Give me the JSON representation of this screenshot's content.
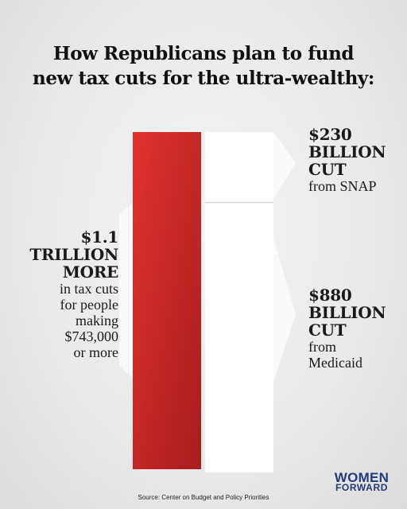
{
  "title": {
    "line1": "How Republicans plan to fund",
    "line2": "new tax cuts for the ultra-wealthy:"
  },
  "chart_data": {
    "type": "bar",
    "series": [
      {
        "name": "tax cuts",
        "values": [
          1100
        ],
        "color": "#d42a2a"
      },
      {
        "name": "SNAP",
        "values": [
          230
        ],
        "color": "#ffffff"
      },
      {
        "name": "Medicaid",
        "values": [
          880
        ],
        "color": "#ffffff"
      }
    ],
    "units": "billion USD",
    "stacked_right": true
  },
  "labels": {
    "total": {
      "big": [
        "$1.1",
        "TRILLION",
        "MORE"
      ],
      "sub": [
        "in tax cuts",
        "for people",
        "making",
        "$743,000",
        "or more"
      ]
    },
    "snap": {
      "big": [
        "$230",
        "BILLION",
        "CUT"
      ],
      "sub": [
        "from SNAP"
      ]
    },
    "medicaid": {
      "big": [
        "$880",
        "BILLION",
        "CUT"
      ],
      "sub": [
        "from",
        "Medicaid"
      ]
    }
  },
  "source": "Source: Center on Budget and Policy Priorities",
  "logo": {
    "line1": "WOMEN",
    "line2": "FORWARD",
    "icon": "checkmark-icon"
  }
}
